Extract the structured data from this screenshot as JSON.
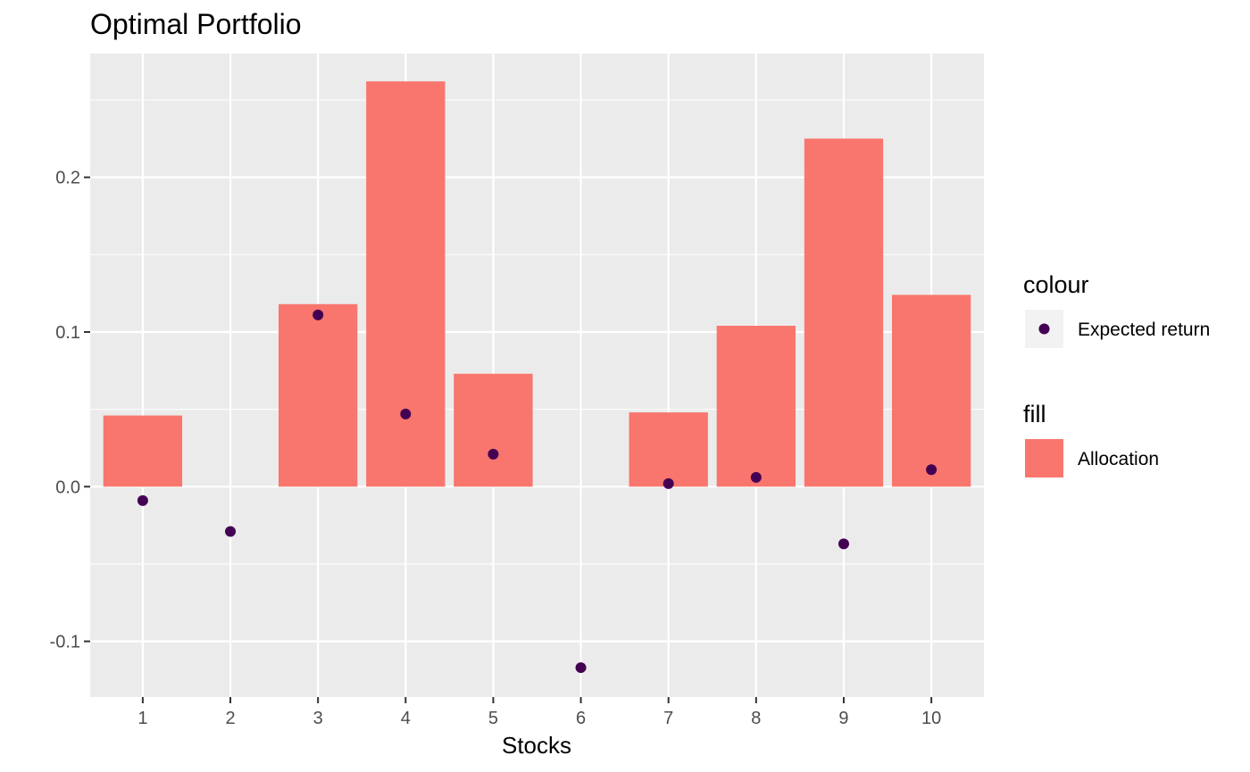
{
  "chart_data": {
    "type": "bar",
    "title": "Optimal Portfolio",
    "xlabel": "Stocks",
    "ylabel": "",
    "categories": [
      "1",
      "2",
      "3",
      "4",
      "5",
      "6",
      "7",
      "8",
      "9",
      "10"
    ],
    "series": [
      {
        "name": "Allocation",
        "type": "bar",
        "values": [
          0.046,
          0.0,
          0.118,
          0.262,
          0.073,
          0.0,
          0.048,
          0.104,
          0.225,
          0.124
        ],
        "color": "#F8766D"
      },
      {
        "name": "Expected return",
        "type": "scatter",
        "values": [
          -0.009,
          -0.029,
          0.111,
          0.047,
          0.021,
          -0.117,
          0.002,
          0.006,
          -0.037,
          0.011
        ],
        "color": "#440154"
      }
    ],
    "ylim": [
      -0.136,
      0.28
    ],
    "yticks": [
      -0.1,
      0.0,
      0.1,
      0.2
    ],
    "ytick_labels": [
      "-0.1",
      "0.0",
      "0.1",
      "0.2"
    ],
    "grid": true,
    "panel_background": "#EBEBEB",
    "legend": {
      "placement": "right",
      "groups": [
        {
          "title": "colour",
          "entries": [
            {
              "label": "Expected return",
              "kind": "point",
              "color": "#440154"
            }
          ]
        },
        {
          "title": "fill",
          "entries": [
            {
              "label": "Allocation",
              "kind": "rect",
              "color": "#F8766D"
            }
          ]
        }
      ]
    }
  }
}
